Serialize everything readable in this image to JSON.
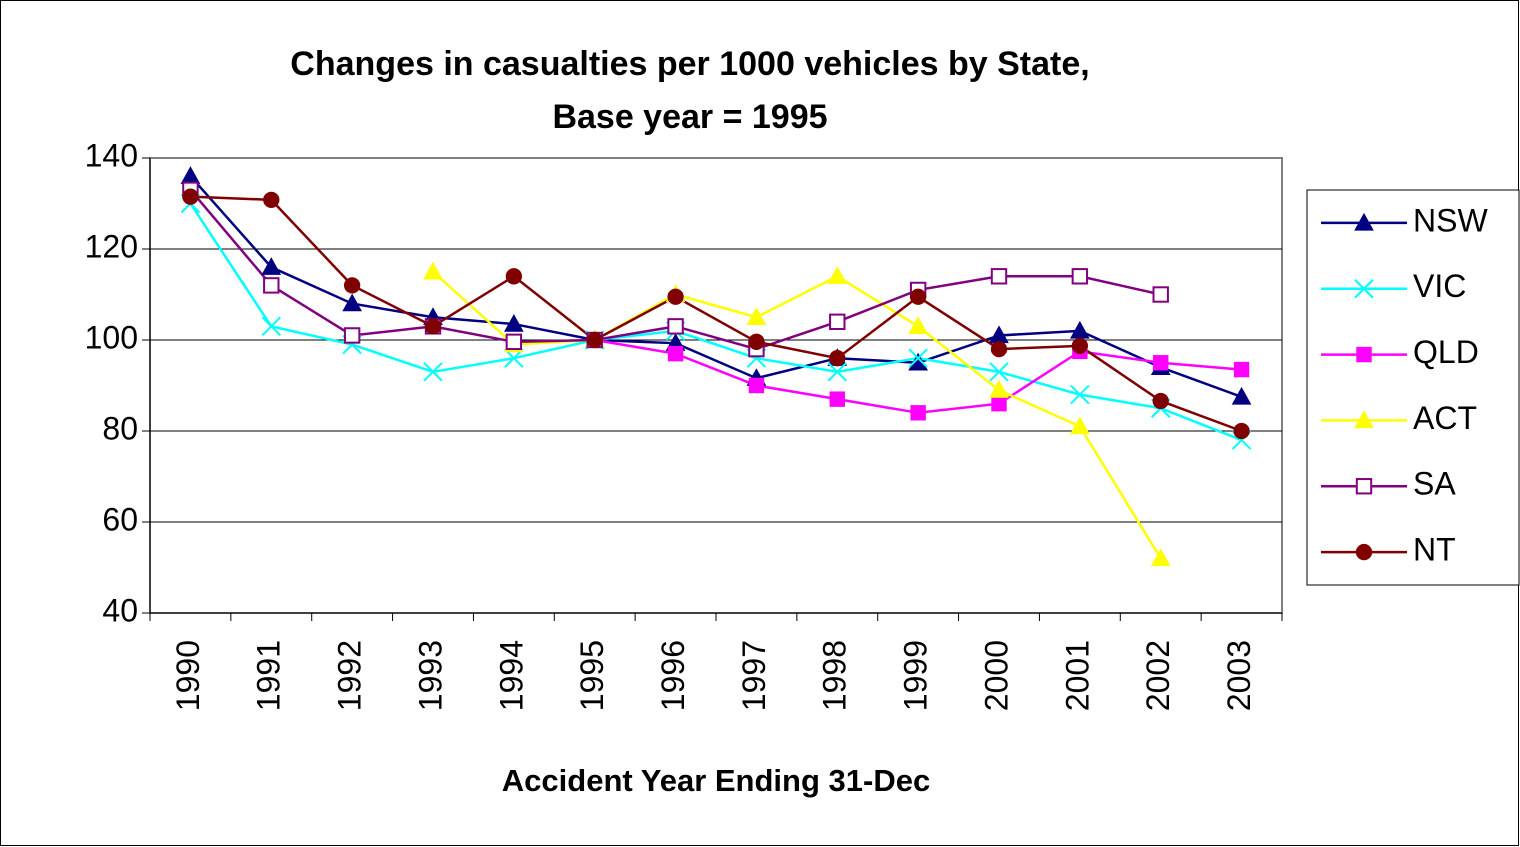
{
  "chart_data": {
    "type": "line",
    "title": [
      "Changes in casualties per 1000 vehicles by State,",
      "Base year = 1995"
    ],
    "x_label": "Accident Year Ending 31-Dec",
    "categories": [
      "1990",
      "1991",
      "1992",
      "1993",
      "1994",
      "1995",
      "1996",
      "1997",
      "1998",
      "1999",
      "2000",
      "2001",
      "2002",
      "2003"
    ],
    "series": [
      {
        "name": "NSW",
        "color": "#000080",
        "marker": "triangle",
        "values": [
          136,
          116,
          108,
          105,
          103.5,
          100,
          99.3,
          91.6,
          96,
          95,
          101,
          102,
          94,
          87.5
        ]
      },
      {
        "name": "VIC",
        "color": "#00ffff",
        "marker": "x",
        "values": [
          130,
          103,
          99,
          93,
          96,
          100,
          102,
          96,
          93,
          96,
          93,
          88,
          85,
          78
        ]
      },
      {
        "name": "QLD",
        "color": "#ff00ff",
        "marker": "square",
        "values": [
          null,
          null,
          null,
          null,
          null,
          100,
          97,
          90,
          87,
          84,
          86,
          97.5,
          95,
          93.5
        ]
      },
      {
        "name": "ACT",
        "color": "#ffff00",
        "marker": "triangle",
        "values": [
          null,
          null,
          null,
          115,
          99,
          100,
          110,
          105,
          114,
          103,
          89,
          81,
          52,
          null
        ]
      },
      {
        "name": "SA",
        "color": "#800080",
        "marker": "open-square",
        "values": [
          133,
          112,
          101,
          103,
          99.6,
          100,
          103,
          98,
          104,
          111,
          114,
          114,
          110,
          null
        ]
      },
      {
        "name": "NT",
        "color": "#800000",
        "marker": "circle",
        "values": [
          131.5,
          130.8,
          112,
          103,
          114,
          100,
          109.5,
          99.6,
          96,
          109.5,
          98,
          98.7,
          86.6,
          80
        ]
      }
    ],
    "ylim": [
      40,
      140
    ],
    "yticks": [
      40,
      60,
      80,
      100,
      120,
      140
    ],
    "grid": true,
    "legend": "right"
  }
}
